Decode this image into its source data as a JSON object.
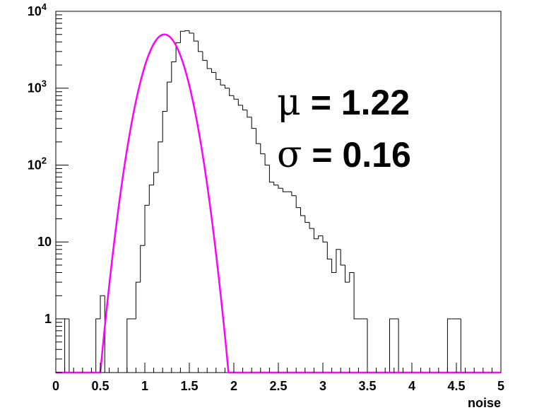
{
  "chart_data": {
    "type": "histogram",
    "xlabel": "noise",
    "ylabel": "",
    "title": "",
    "xlim": [
      0,
      5
    ],
    "ylim": [
      0.2,
      10000
    ],
    "y_scale": "log",
    "grid": false,
    "x_ticks": [
      "0",
      "0.5",
      "1",
      "1.5",
      "2",
      "2.5",
      "3",
      "3.5",
      "4",
      "4.5",
      "5"
    ],
    "y_ticks": [
      {
        "value": 1,
        "base": "1",
        "exp": ""
      },
      {
        "value": 10,
        "base": "10",
        "exp": ""
      },
      {
        "value": 100,
        "base": "10",
        "exp": "2"
      },
      {
        "value": 1000,
        "base": "10",
        "exp": "3"
      },
      {
        "value": 10000,
        "base": "10",
        "exp": "4"
      }
    ],
    "bin_width": 0.05,
    "bins_start": 0,
    "counts": [
      0,
      0,
      1,
      0,
      0,
      0,
      0,
      0,
      0,
      1,
      2,
      0,
      0,
      0,
      0,
      0,
      1,
      1,
      3,
      9,
      30,
      55,
      80,
      200,
      500,
      1200,
      2200,
      3900,
      5500,
      5600,
      5200,
      4100,
      3000,
      2300,
      1800,
      1600,
      1300,
      1100,
      1000,
      800,
      720,
      600,
      520,
      420,
      300,
      190,
      140,
      100,
      60,
      55,
      50,
      45,
      45,
      40,
      28,
      22,
      18,
      15,
      11,
      12,
      10,
      6,
      4,
      8,
      5,
      3,
      4,
      1,
      1,
      1,
      0,
      0,
      0,
      0,
      0,
      1,
      1,
      0,
      0,
      0,
      0,
      0,
      0,
      0,
      0,
      0,
      0,
      0,
      1,
      1,
      1,
      0,
      0,
      0,
      0,
      0,
      0,
      0,
      0,
      0
    ],
    "fit": {
      "type": "gaussian",
      "mean": 1.22,
      "sigma": 0.16,
      "amplitude": 5000,
      "color": "#ff00ff"
    },
    "annotations": [
      {
        "symbol": "μ",
        "text": " = 1.22"
      },
      {
        "symbol": "σ",
        "text": " = 0.16"
      }
    ]
  },
  "colors": {
    "histogram": "#000000",
    "fit": "#ff00ff",
    "axis": "#000000"
  }
}
